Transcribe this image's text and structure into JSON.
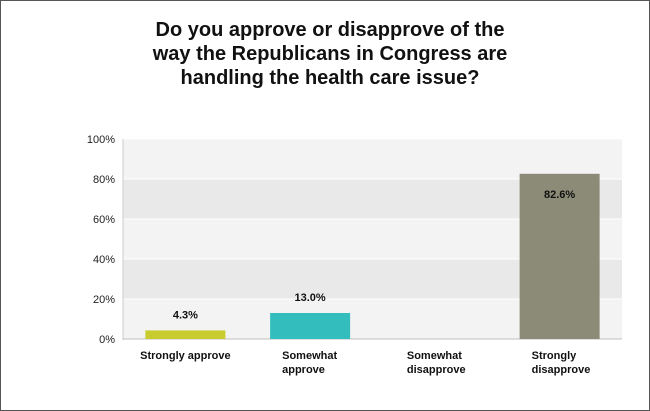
{
  "chart_data": {
    "type": "bar",
    "title_lines": [
      "Do you approve or disapprove of the",
      "way the Republicans in Congress are",
      "handling the health care issue?"
    ],
    "categories": [
      [
        "Strongly approve"
      ],
      [
        "Somewhat",
        "approve"
      ],
      [
        "Somewhat",
        "disapprove"
      ],
      [
        "Strongly",
        "disapprove"
      ]
    ],
    "values": [
      4.3,
      13.0,
      0,
      82.6
    ],
    "value_labels": [
      "4.3%",
      "13.0%",
      "",
      "82.6%"
    ],
    "colors": [
      "#c8cc2e",
      "#33bdbd",
      "#8b8b73",
      "#8b8b77"
    ],
    "ylim": [
      0,
      100
    ],
    "yticks": [
      0,
      20,
      40,
      60,
      80,
      100
    ],
    "ytick_labels": [
      "0%",
      "20%",
      "40%",
      "60%",
      "80%",
      "100%"
    ],
    "grid": true,
    "legend": "none"
  }
}
